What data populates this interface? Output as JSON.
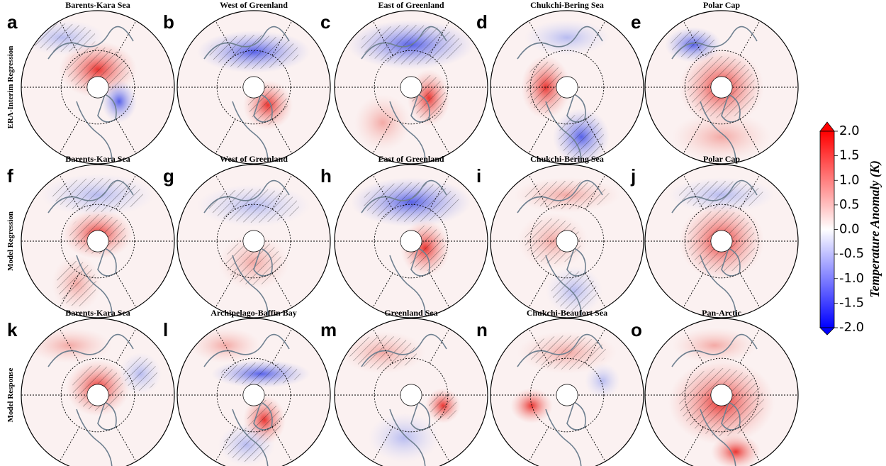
{
  "rows": [
    {
      "label": "ERA-Interim Regression",
      "panels": [
        {
          "letter": "a",
          "title": "Barents-Kara Sea"
        },
        {
          "letter": "b",
          "title": "West of Greenland"
        },
        {
          "letter": "c",
          "title": "East of Greenland"
        },
        {
          "letter": "d",
          "title": "Chukchi-Bering Sea"
        },
        {
          "letter": "e",
          "title": "Polar Cap"
        }
      ]
    },
    {
      "label": "Model Regression",
      "panels": [
        {
          "letter": "f",
          "title": "Barents-Kara Sea"
        },
        {
          "letter": "g",
          "title": "West of Greenland"
        },
        {
          "letter": "h",
          "title": "East of Greenland"
        },
        {
          "letter": "i",
          "title": "Chukchi-Bering Sea"
        },
        {
          "letter": "j",
          "title": "Polar Cap"
        }
      ]
    },
    {
      "label": "Model Response",
      "panels": [
        {
          "letter": "k",
          "title": "Barents-Kara Sea"
        },
        {
          "letter": "l",
          "title": "Archipelago-Baffin Bay"
        },
        {
          "letter": "m",
          "title": "Greenland Sea"
        },
        {
          "letter": "n",
          "title": "Chukchi-Beaufort Sea"
        },
        {
          "letter": "o",
          "title": "Pan-Arctic"
        }
      ]
    }
  ],
  "colorbar": {
    "label": "Temperature Anomaly (K)",
    "lim": [
      -2,
      2
    ],
    "ticks": [
      {
        "value": 2,
        "label": "2.0"
      },
      {
        "value": 1.5,
        "label": "1.5"
      },
      {
        "value": 1,
        "label": "1.0"
      },
      {
        "value": 0.5,
        "label": "0.5"
      },
      {
        "value": 0,
        "label": "0.0"
      },
      {
        "value": -0.5,
        "label": "-0.5"
      },
      {
        "value": -1,
        "label": "-1.0"
      },
      {
        "value": -1.5,
        "label": "-1.5"
      },
      {
        "value": -2,
        "label": "-2.0"
      }
    ]
  }
}
